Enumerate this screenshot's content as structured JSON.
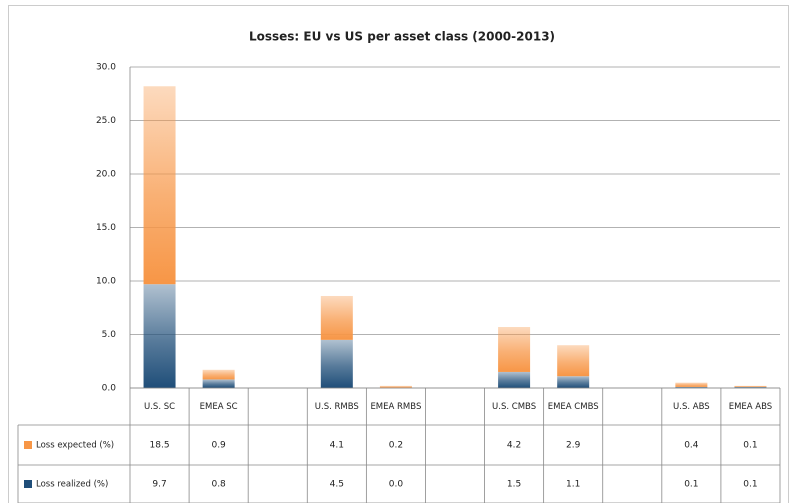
{
  "chart_data": {
    "type": "bar",
    "stacked": true,
    "title": "Losses: EU vs US per asset class (2000-2013)",
    "categories": [
      "U.S. SC",
      "EMEA SC",
      null,
      "U.S. RMBS",
      "EMEA RMBS",
      null,
      "U.S. CMBS",
      "EMEA CMBS",
      null,
      "U.S. ABS",
      "EMEA ABS"
    ],
    "series": [
      {
        "name": "Loss expected (%)",
        "color": "#f79646",
        "values": [
          18.5,
          0.9,
          null,
          4.1,
          0.2,
          null,
          4.2,
          2.9,
          null,
          0.4,
          0.1
        ],
        "value_labels": [
          "18.5",
          "0.9",
          null,
          "4.1",
          "0.2",
          null,
          "4.2",
          "2.9",
          null,
          "0.4",
          "0.1"
        ]
      },
      {
        "name": "Loss realized (%)",
        "color": "#1f4e79",
        "values": [
          9.7,
          0.8,
          null,
          4.5,
          0,
          null,
          1.5,
          1.1,
          null,
          0.1,
          0.1
        ],
        "value_labels": [
          "9.7",
          "0.8",
          null,
          "4.5",
          "0.0",
          null,
          "1.5",
          "1.1",
          null,
          "0.1",
          "0.1"
        ]
      }
    ],
    "ylim": [
      0,
      30
    ],
    "yticks": [
      {
        "value": 0,
        "label": "0.0"
      },
      {
        "value": 5,
        "label": "5.0"
      },
      {
        "value": 10,
        "label": "10.0"
      },
      {
        "value": 15,
        "label": "15.0"
      },
      {
        "value": 20,
        "label": "20.0"
      },
      {
        "value": 25,
        "label": "25.0"
      },
      {
        "value": 30,
        "label": "30.0"
      }
    ],
    "grid": true,
    "data_table": true
  }
}
